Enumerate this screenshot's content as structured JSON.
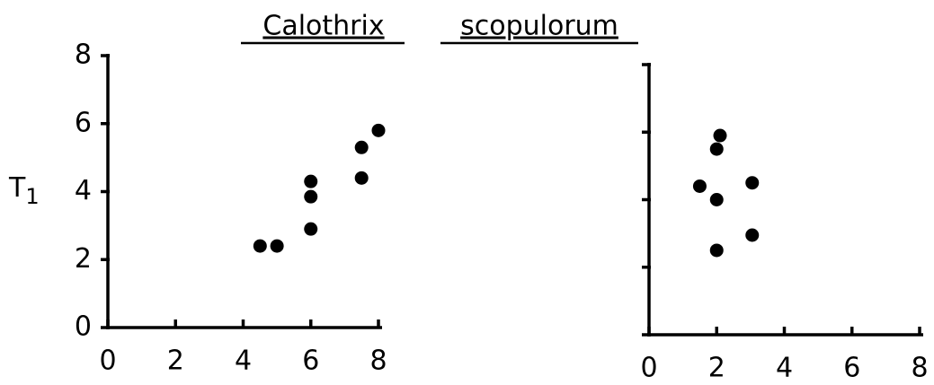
{
  "title": [
    "Calothrix",
    "scopulorum"
  ],
  "chart_data": [
    {
      "type": "scatter",
      "ylabel": "T",
      "ylabel_subscript": "1",
      "x": [
        4.5,
        5.0,
        6.0,
        6.0,
        6.0,
        7.5,
        7.5,
        8.0
      ],
      "values": [
        2.4,
        2.4,
        2.9,
        3.85,
        4.3,
        4.4,
        5.3,
        5.8
      ],
      "color": "#000000",
      "xlim": [
        0,
        8
      ],
      "xticks": [
        0,
        2,
        4,
        6,
        8
      ],
      "ylim": [
        0,
        8
      ],
      "yticks": [
        0,
        2,
        4,
        6,
        8
      ],
      "ytick_labels": true
    },
    {
      "type": "scatter",
      "x": [
        1.5,
        2.1,
        2.0,
        2.0,
        2.0,
        3.05,
        3.05
      ],
      "values": [
        4.4,
        5.9,
        5.5,
        4.0,
        2.5,
        4.5,
        2.95
      ],
      "color": "#000000",
      "xlim": [
        0,
        8
      ],
      "xticks": [
        0,
        2,
        4,
        6,
        8
      ],
      "ylim": [
        0,
        8
      ],
      "yticks": [
        0,
        2,
        4,
        6,
        8
      ],
      "ytick_labels": false
    }
  ]
}
